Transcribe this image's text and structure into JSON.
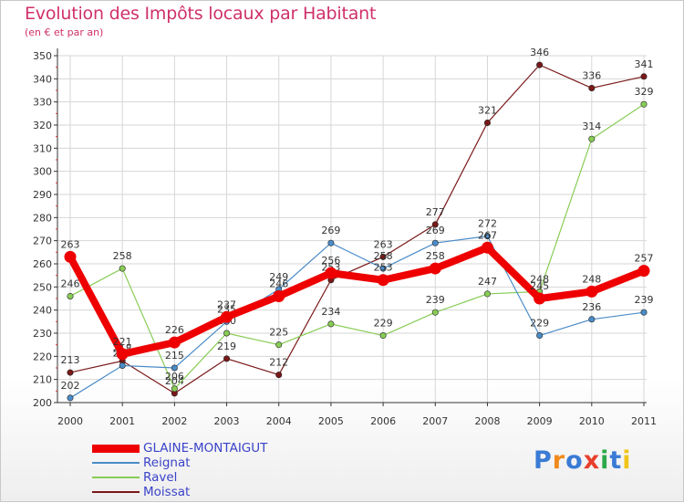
{
  "header": {
    "title": "Evolution des Impôts locaux par Habitant",
    "subtitle": "(en € et par an)"
  },
  "brand": {
    "logo_text": "Proxiti"
  },
  "chart_data": {
    "type": "line",
    "title": "Evolution des Impôts locaux par Habitant",
    "subtitle": "(en € et par an)",
    "xlabel": "",
    "ylabel": "",
    "categories": [
      "2000",
      "2001",
      "2002",
      "2003",
      "2004",
      "2005",
      "2006",
      "2007",
      "2008",
      "2009",
      "2010",
      "2011"
    ],
    "ylim": [
      200,
      350
    ],
    "yticks": [
      200,
      210,
      220,
      230,
      240,
      250,
      260,
      270,
      280,
      290,
      300,
      310,
      320,
      330,
      340,
      350
    ],
    "grid": true,
    "legend_position": "bottom-left",
    "series": [
      {
        "name": "Moissat",
        "color": "#7a1818",
        "values": [
          213,
          218,
          204,
          219,
          212,
          253,
          263,
          277,
          321,
          346,
          336,
          341
        ]
      },
      {
        "name": "Ravel",
        "color": "#88cc55",
        "values": [
          246,
          258,
          206,
          230,
          225,
          234,
          229,
          239,
          247,
          248,
          314,
          329
        ]
      },
      {
        "name": "Reignat",
        "color": "#4b8cc8",
        "values": [
          202,
          216,
          215,
          235,
          249,
          269,
          258,
          269,
          272,
          229,
          236,
          239
        ]
      },
      {
        "name": "GLAINE-MONTAIGUT",
        "color": "#ee0000",
        "values": [
          263,
          221,
          226,
          237,
          246,
          256,
          253,
          258,
          267,
          245,
          248,
          257
        ]
      }
    ],
    "legend_order": [
      "GLAINE-MONTAIGUT",
      "Reignat",
      "Ravel",
      "Moissat"
    ]
  }
}
